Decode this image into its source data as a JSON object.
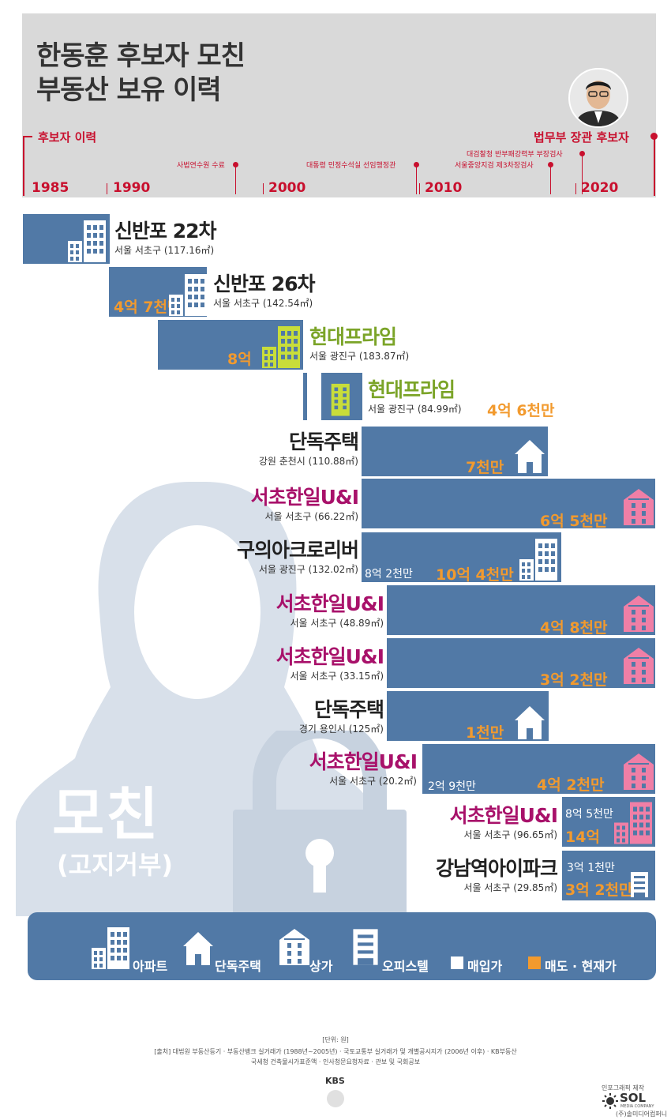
{
  "title": {
    "line1": "한동훈 후보자 모친",
    "line2": "부동산 보유 이력"
  },
  "timeline": {
    "left_label": "후보자 이력",
    "right_label": "법무부 장관 후보자",
    "years": [
      "1985",
      "1990",
      "2000",
      "2010",
      "2020"
    ],
    "events": [
      "사법연수원 수료",
      "대통령 민정수석실 선임행정관",
      "대검찰청 반부패강력부 부장검사",
      "서울중앙지검 제3차장검사"
    ]
  },
  "mother": {
    "label": "모친",
    "sublabel": "(고지거부)"
  },
  "properties": [
    {
      "name": "신반포 22차",
      "location": "서울 서초구 (117.16㎡)",
      "type": "apartment",
      "name_color": "dark"
    },
    {
      "name": "신반포 26차",
      "location": "서울 서초구 (142.54㎡)",
      "type": "apartment",
      "name_color": "dark",
      "sell_price": "4억 7천만"
    },
    {
      "name": "현대프라임",
      "location": "서울 광진구 (183.87㎡)",
      "type": "commercial",
      "name_color": "green",
      "sell_price": "8억"
    },
    {
      "name": "현대프라임",
      "location": "서울 광진구 (84.99㎡)",
      "type": "commercial",
      "name_color": "green",
      "sell_price": "4억 6천만"
    },
    {
      "name": "단독주택",
      "location": "강원 춘천시 (110.88㎡)",
      "type": "house",
      "name_color": "dark",
      "sell_price": "7천만"
    },
    {
      "name": "서초한일U&I",
      "location": "서울 서초구 (66.22㎡)",
      "type": "commercial",
      "name_color": "purple",
      "sell_price": "6억 5천만"
    },
    {
      "name": "구의아크로리버",
      "location": "서울 광진구 (132.02㎡)",
      "type": "apartment",
      "name_color": "dark",
      "buy_price": "8억 2천만",
      "sell_price": "10억 4천만"
    },
    {
      "name": "서초한일U&I",
      "location": "서울 서초구 (48.89㎡)",
      "type": "commercial",
      "name_color": "purple",
      "sell_price": "4억 8천만"
    },
    {
      "name": "서초한일U&I",
      "location": "서울 서초구 (33.15㎡)",
      "type": "commercial",
      "name_color": "purple",
      "sell_price": "3억 2천만"
    },
    {
      "name": "단독주택",
      "location": "경기 용인시 (125㎡)",
      "type": "house",
      "name_color": "dark",
      "sell_price": "1천만"
    },
    {
      "name": "서초한일U&I",
      "location": "서울 서초구 (20.2㎡)",
      "type": "commercial",
      "name_color": "purple",
      "buy_price": "2억 9천만",
      "sell_price": "4억 2천만"
    },
    {
      "name": "서초한일U&I",
      "location": "서울 서초구 (96.65㎡)",
      "type": "commercial",
      "name_color": "purple",
      "buy_price": "8억 5천만",
      "sell_price": "14억"
    },
    {
      "name": "강남역아이파크",
      "location": "서울 서초구 (29.85㎡)",
      "type": "officetel",
      "name_color": "dark",
      "buy_price": "3억 1천만",
      "sell_price": "3억 2천만"
    }
  ],
  "legend": {
    "apartment": "아파트",
    "house": "단독주택",
    "commercial": "상가",
    "officetel": "오피스텔",
    "buy": "매입가",
    "sell": "매도 · 현재가"
  },
  "footer": {
    "unit": "[단위: 원]",
    "source1": "[출처] 대법원 부동산등기 · 부동산뱅크 실거래가 (1988년~2005년) · 국토교통부 실거래가 및 개별공시지가 (2006년 이후) · KB부동산",
    "source2": "국세청 건축물시가표준액 · 인사청문요청자료 · 관보 및 국회공보",
    "broadcaster": "KBS",
    "credit_top": "인포그래픽 제작",
    "credit_logo": "SOL",
    "credit_logo_sub": "MEDIA COMPANY",
    "credit_bottom": "(주)솔미디어컴퍼니"
  },
  "colors": {
    "bar": "#5179a6",
    "accent_red": "#c8102e",
    "sell": "#f29a2e",
    "green": "#7ba428",
    "purple": "#a8116a",
    "pink": "#f07fa6",
    "lime": "#c8dd3a"
  }
}
